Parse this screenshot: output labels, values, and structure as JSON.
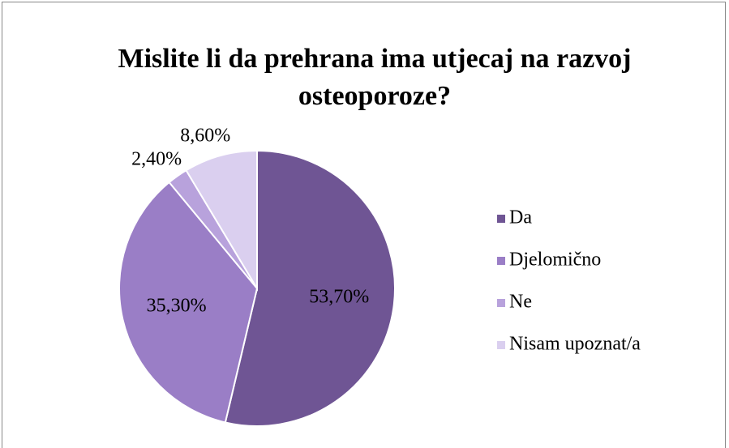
{
  "chart_data": {
    "type": "pie",
    "title": "Mislite li da prehrana ima utjecaj na razvoj osteoporoze?",
    "categories": [
      "Da",
      "Djelomično",
      "Ne",
      "Nisam upoznat/a"
    ],
    "values": [
      53.7,
      35.3,
      2.4,
      8.6
    ],
    "value_labels": [
      "53,70%",
      "35,30%",
      "2,40%",
      "8,60%"
    ],
    "colors": [
      "#6f5594",
      "#9a7ec6",
      "#b8a2dc",
      "#dacfef"
    ],
    "legend": "right"
  }
}
